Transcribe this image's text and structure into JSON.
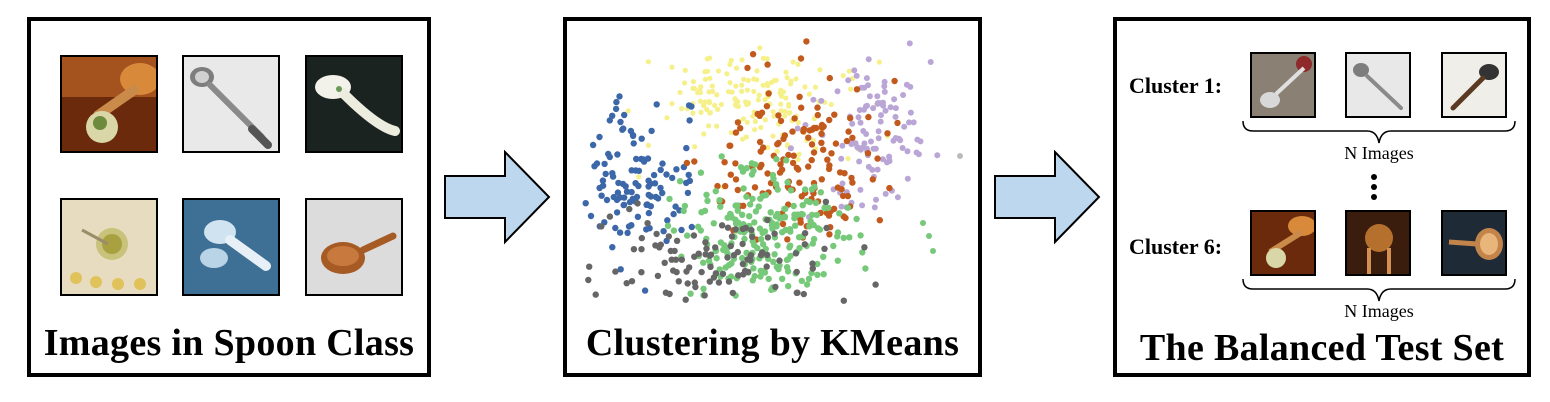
{
  "panels": {
    "left": {
      "title": "Images in Spoon Class"
    },
    "middle": {
      "title": "Clustering by KMeans"
    },
    "right": {
      "title": "The Balanced Test Set",
      "cluster_1_label": "Cluster 1:",
      "cluster_6_label": "Cluster 6:",
      "n_images_top": "N Images",
      "n_images_bottom": "N Images"
    }
  },
  "colors": {
    "arrow_fill": "#bdd7ee",
    "blue": "#3c67a8",
    "yellow": "#f6f08a",
    "orange": "#c25a1e",
    "green": "#77c97a",
    "gray": "#666666",
    "lavender": "#b9a6d6"
  }
}
